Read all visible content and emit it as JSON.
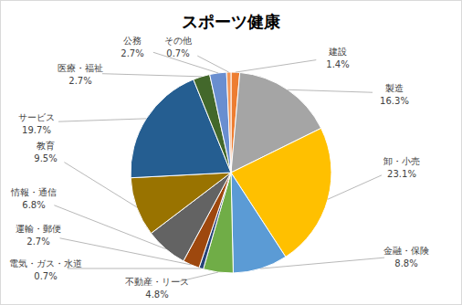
{
  "chart_data": {
    "type": "pie",
    "title": "スポーツ健康",
    "categories": [
      "建設",
      "製造",
      "卸・小売",
      "金融・保険",
      "不動産・リース",
      "電気・ガス・水道",
      "運輸・郵便",
      "情報・通信",
      "教育",
      "サービス",
      "医療・福祉",
      "公務",
      "その他"
    ],
    "values": [
      1.4,
      16.3,
      23.1,
      8.8,
      4.8,
      0.7,
      2.7,
      6.8,
      9.5,
      19.7,
      2.7,
      2.7,
      0.7
    ],
    "value_labels": [
      "1.4%",
      "16.3%",
      "23.1%",
      "8.8%",
      "4.8%",
      "0.7%",
      "2.7%",
      "6.8%",
      "9.5%",
      "19.7%",
      "2.7%",
      "2.7%",
      "0.7%"
    ],
    "colors": [
      "#ED7D31",
      "#A5A5A5",
      "#FFC000",
      "#5B9BD5",
      "#70AD47",
      "#264478",
      "#9E480E",
      "#636363",
      "#997300",
      "#255E91",
      "#43682B",
      "#698ED0",
      "#F1975A"
    ],
    "data_labels": true
  }
}
